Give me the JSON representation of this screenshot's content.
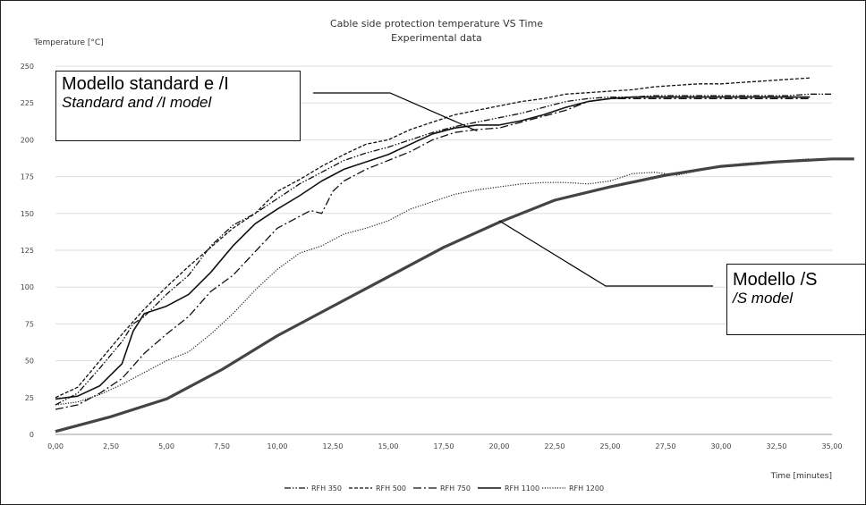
{
  "chart_data": {
    "type": "line",
    "title": "Cable side protection temperature VS Time",
    "subtitle": "Experimental data",
    "ylabel": "Temperature [°C]",
    "xlabel": "Time [minutes]",
    "xlim": [
      0,
      35
    ],
    "ylim": [
      0,
      250
    ],
    "x_ticks": [
      "0,00",
      "2,50",
      "5,00",
      "7,50",
      "10,00",
      "12,50",
      "15,00",
      "17,50",
      "20,00",
      "22,50",
      "25,00",
      "27,50",
      "30,00",
      "32,50",
      "35,00"
    ],
    "y_ticks": [
      "0",
      "25",
      "50",
      "75",
      "100",
      "125",
      "150",
      "175",
      "200",
      "225",
      "250"
    ],
    "grid": "horizontal",
    "legend_position": "bottom",
    "series": [
      {
        "name": "RFH 350",
        "style": "dash-dot-dot",
        "points": [
          [
            0,
            20
          ],
          [
            1,
            28
          ],
          [
            2,
            45
          ],
          [
            3,
            63
          ],
          [
            3.5,
            75
          ],
          [
            4,
            80
          ],
          [
            5,
            95
          ],
          [
            6,
            108
          ],
          [
            7,
            128
          ],
          [
            7.5,
            135
          ],
          [
            8,
            142
          ],
          [
            9,
            150
          ],
          [
            10,
            160
          ],
          [
            11,
            170
          ],
          [
            12,
            178
          ],
          [
            13,
            186
          ],
          [
            14,
            191
          ],
          [
            15,
            195
          ],
          [
            16,
            200
          ],
          [
            17,
            205
          ],
          [
            18,
            209
          ],
          [
            19,
            212
          ],
          [
            20,
            215
          ],
          [
            21,
            218
          ],
          [
            22,
            222
          ],
          [
            23,
            226
          ],
          [
            24,
            228
          ],
          [
            25,
            229
          ],
          [
            26,
            229
          ],
          [
            27,
            230
          ],
          [
            28,
            230
          ],
          [
            29,
            230
          ],
          [
            30,
            230
          ],
          [
            31,
            230
          ],
          [
            32,
            230
          ],
          [
            33,
            230
          ],
          [
            34,
            231
          ],
          [
            35,
            231
          ]
        ]
      },
      {
        "name": "RFH 500",
        "style": "dashed",
        "points": [
          [
            0,
            25
          ],
          [
            1,
            32
          ],
          [
            2,
            50
          ],
          [
            3,
            68
          ],
          [
            4,
            85
          ],
          [
            5,
            100
          ],
          [
            6,
            114
          ],
          [
            7,
            127
          ],
          [
            8,
            140
          ],
          [
            9,
            150
          ],
          [
            10,
            165
          ],
          [
            11,
            173
          ],
          [
            12,
            182
          ],
          [
            13,
            190
          ],
          [
            14,
            197
          ],
          [
            15,
            200
          ],
          [
            16,
            207
          ],
          [
            17,
            212
          ],
          [
            18,
            217
          ],
          [
            19,
            220
          ],
          [
            20,
            223
          ],
          [
            21,
            226
          ],
          [
            22,
            228
          ],
          [
            23,
            231
          ],
          [
            24,
            232
          ],
          [
            25,
            233
          ],
          [
            26,
            234
          ],
          [
            27,
            236
          ],
          [
            28,
            237
          ],
          [
            29,
            238
          ],
          [
            30,
            238
          ],
          [
            31,
            239
          ],
          [
            32,
            240
          ],
          [
            33,
            241
          ],
          [
            34,
            242
          ]
        ]
      },
      {
        "name": "RFH 750",
        "style": "dash-dot",
        "points": [
          [
            0,
            17
          ],
          [
            1,
            20
          ],
          [
            2,
            28
          ],
          [
            3,
            38
          ],
          [
            4,
            55
          ],
          [
            5,
            68
          ],
          [
            6,
            80
          ],
          [
            7,
            97
          ],
          [
            8,
            108
          ],
          [
            9,
            124
          ],
          [
            10,
            140
          ],
          [
            11,
            148
          ],
          [
            11.5,
            152
          ],
          [
            12,
            150
          ],
          [
            12.5,
            165
          ],
          [
            13,
            172
          ],
          [
            14,
            180
          ],
          [
            15,
            186
          ],
          [
            16,
            192
          ],
          [
            17,
            200
          ],
          [
            18,
            205
          ],
          [
            19,
            207
          ],
          [
            20,
            208
          ],
          [
            21,
            212
          ],
          [
            22,
            216
          ],
          [
            23,
            220
          ],
          [
            24,
            226
          ],
          [
            25,
            228
          ],
          [
            26,
            228
          ],
          [
            27,
            228
          ],
          [
            28,
            228
          ],
          [
            29,
            228
          ],
          [
            30,
            228
          ],
          [
            31,
            228
          ],
          [
            32,
            228
          ],
          [
            33,
            228
          ],
          [
            34,
            228
          ]
        ]
      },
      {
        "name": "RFH 1100",
        "style": "solid",
        "points": [
          [
            0,
            24
          ],
          [
            1,
            26
          ],
          [
            2,
            33
          ],
          [
            3,
            48
          ],
          [
            3.5,
            70
          ],
          [
            4,
            82
          ],
          [
            5,
            87
          ],
          [
            6,
            95
          ],
          [
            7,
            110
          ],
          [
            8,
            128
          ],
          [
            9,
            143
          ],
          [
            10,
            153
          ],
          [
            11,
            162
          ],
          [
            12,
            172
          ],
          [
            13,
            180
          ],
          [
            14,
            185
          ],
          [
            15,
            190
          ],
          [
            16,
            197
          ],
          [
            17,
            204
          ],
          [
            18,
            208
          ],
          [
            19,
            210
          ],
          [
            20,
            210
          ],
          [
            21,
            213
          ],
          [
            22,
            217
          ],
          [
            23,
            222
          ],
          [
            24,
            226
          ],
          [
            25,
            228
          ],
          [
            26,
            229
          ],
          [
            27,
            229
          ],
          [
            28,
            229
          ],
          [
            29,
            229
          ],
          [
            30,
            229
          ],
          [
            31,
            229
          ],
          [
            32,
            229
          ],
          [
            33,
            229
          ],
          [
            34,
            229
          ]
        ]
      },
      {
        "name": "RFH 1200",
        "style": "dotted",
        "points": [
          [
            0,
            20
          ],
          [
            1,
            22
          ],
          [
            2,
            27
          ],
          [
            3,
            34
          ],
          [
            4,
            42
          ],
          [
            5,
            50
          ],
          [
            6,
            56
          ],
          [
            7,
            68
          ],
          [
            8,
            82
          ],
          [
            9,
            98
          ],
          [
            10,
            112
          ],
          [
            11,
            123
          ],
          [
            12,
            128
          ],
          [
            13,
            136
          ],
          [
            14,
            140
          ],
          [
            15,
            145
          ],
          [
            16,
            153
          ],
          [
            17,
            158
          ],
          [
            18,
            163
          ],
          [
            19,
            166
          ],
          [
            20,
            168
          ],
          [
            21,
            170
          ],
          [
            22,
            171
          ],
          [
            23,
            171
          ],
          [
            24,
            170
          ],
          [
            25,
            172
          ],
          [
            26,
            177
          ],
          [
            27,
            178
          ],
          [
            28,
            176
          ],
          [
            29,
            179
          ],
          [
            30,
            182
          ],
          [
            31,
            184
          ],
          [
            32,
            185
          ],
          [
            33,
            186
          ],
          [
            34,
            187
          ]
        ]
      },
      {
        "name": "Modello /S",
        "style": "thick-solid",
        "points": [
          [
            0,
            2
          ],
          [
            2.5,
            12
          ],
          [
            5,
            24
          ],
          [
            7.5,
            44
          ],
          [
            10,
            67
          ],
          [
            12.5,
            87
          ],
          [
            15,
            107
          ],
          [
            17.5,
            127
          ],
          [
            20,
            144
          ],
          [
            22.5,
            159
          ],
          [
            25,
            168
          ],
          [
            27.5,
            176
          ],
          [
            30,
            182
          ],
          [
            32.5,
            185
          ],
          [
            35,
            187
          ],
          [
            36,
            187
          ]
        ]
      }
    ],
    "annotations": [
      {
        "line1": "Modello standard e /I",
        "line2": "Standard and /I model",
        "point_to": [
          19,
          206
        ]
      },
      {
        "line1": "Modello /S",
        "line2": "/S model",
        "point_to": [
          20,
          145
        ]
      }
    ]
  }
}
